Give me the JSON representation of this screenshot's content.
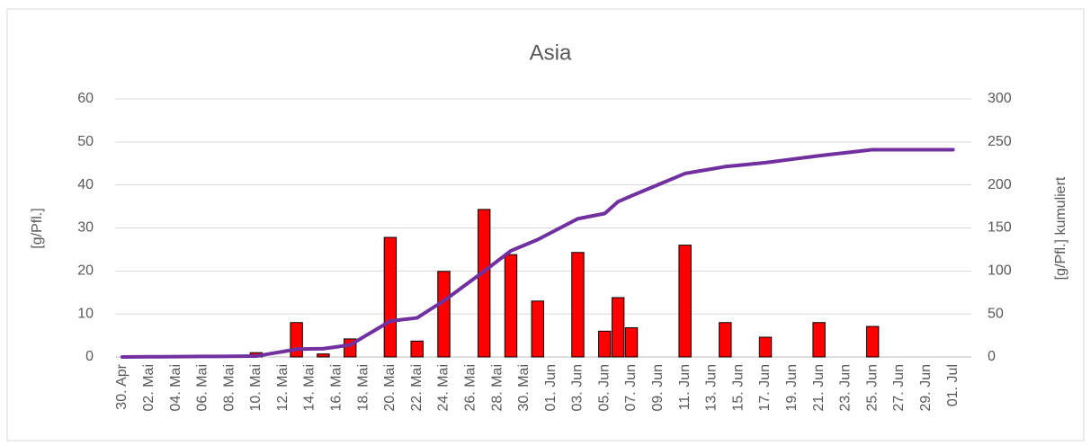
{
  "chart_data": {
    "type": "bar-line",
    "title": "Asia",
    "ylabel": "[g/Pfl.]",
    "y2label": "[g/Pfl.] kumuliert",
    "categories": [
      "30. Apr",
      null,
      "02. Mai",
      null,
      "04. Mai",
      null,
      "06. Mai",
      null,
      "08. Mai",
      null,
      "10. Mai",
      null,
      "12. Mai",
      null,
      "14. Mai",
      null,
      "16. Mai",
      null,
      "18. Mai",
      null,
      "20. Mai",
      null,
      "22. Mai",
      null,
      "24. Mai",
      null,
      "26. Mai",
      null,
      "28. Mai",
      null,
      "30. Mai",
      null,
      "01. Jun",
      null,
      "03. Jun",
      null,
      "05. Jun",
      null,
      "07. Jun",
      null,
      "09. Jun",
      null,
      "11. Jun",
      null,
      "13. Jun",
      null,
      "15. Jun",
      null,
      "17. Jun",
      null,
      "19. Jun",
      null,
      "21. Jun",
      null,
      "23. Jun",
      null,
      "25. Jun",
      null,
      "27. Jun",
      null,
      "29. Jun",
      null,
      "01. Jul"
    ],
    "series": [
      {
        "type": "bar",
        "color": "#ff0000",
        "values": [
          null,
          null,
          null,
          null,
          null,
          null,
          null,
          null,
          null,
          null,
          1,
          null,
          null,
          8,
          null,
          0.7,
          null,
          4.2,
          null,
          null,
          27.8,
          null,
          3.7,
          null,
          19.9,
          null,
          null,
          34.3,
          null,
          23.8,
          null,
          13,
          null,
          null,
          24.3,
          null,
          6,
          13.8,
          6.8,
          null,
          null,
          null,
          26,
          null,
          null,
          8,
          null,
          null,
          4.6,
          null,
          null,
          null,
          8,
          null,
          null,
          null,
          7.1,
          null,
          null,
          null,
          null,
          null,
          null
        ]
      },
      {
        "type": "line",
        "color": "#7030a0",
        "axis": "y2",
        "values": [
          0,
          0.1,
          0.2,
          0.3,
          0.4,
          0.5,
          0.6,
          0.7,
          0.8,
          0.9,
          1,
          3.7,
          6.3,
          9,
          9.4,
          9.7,
          11.8,
          13.9,
          23.2,
          32.4,
          41.7,
          43.6,
          45.4,
          55.4,
          65.3,
          76.7,
          88.2,
          99.6,
          111.5,
          123.4,
          129.9,
          136.4,
          144.5,
          152.6,
          160.7,
          163.7,
          166.7,
          180.5,
          187.3,
          193.8,
          200.3,
          206.8,
          213.3,
          216,
          218.6,
          221.3,
          222.8,
          224.4,
          225.9,
          227.9,
          229.9,
          231.9,
          233.9,
          235.7,
          237.4,
          239.2,
          241,
          241,
          241,
          241,
          241,
          241,
          241
        ]
      }
    ],
    "ylim": [
      0,
      60
    ],
    "yticks": [
      0,
      10,
      20,
      30,
      40,
      50,
      60
    ],
    "y2lim": [
      0,
      300
    ],
    "y2ticks": [
      0,
      50,
      100,
      150,
      200,
      250,
      300
    ],
    "grid": true
  }
}
